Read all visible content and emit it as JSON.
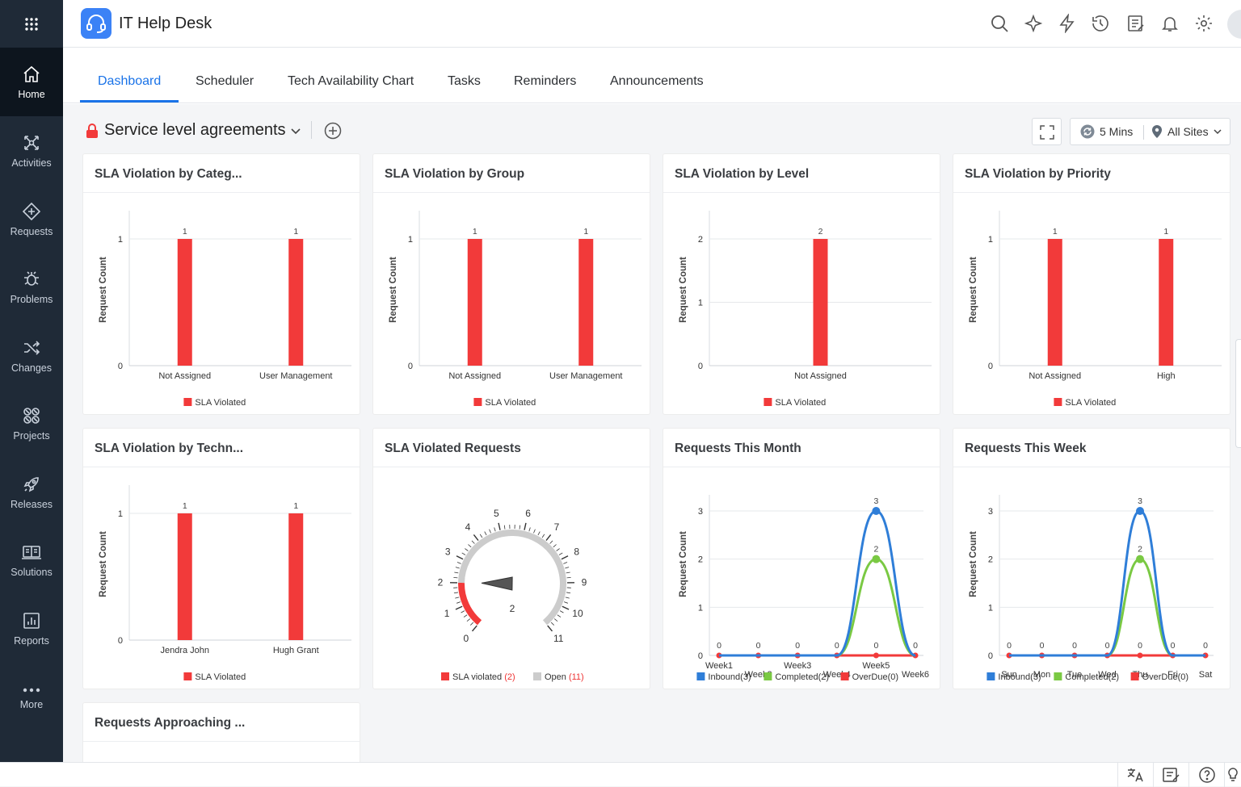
{
  "app": {
    "title": "IT Help Desk"
  },
  "sidebar": {
    "items": [
      {
        "label": "Home",
        "icon": "home-icon"
      },
      {
        "label": "Activities",
        "icon": "activities-icon"
      },
      {
        "label": "Requests",
        "icon": "requests-icon"
      },
      {
        "label": "Problems",
        "icon": "problems-icon"
      },
      {
        "label": "Changes",
        "icon": "changes-icon"
      },
      {
        "label": "Projects",
        "icon": "projects-icon"
      },
      {
        "label": "Releases",
        "icon": "releases-icon"
      },
      {
        "label": "Solutions",
        "icon": "solutions-icon"
      },
      {
        "label": "Reports",
        "icon": "reports-icon"
      },
      {
        "label": "More",
        "icon": "more-icon"
      }
    ]
  },
  "tabs": [
    {
      "label": "Dashboard"
    },
    {
      "label": "Scheduler"
    },
    {
      "label": "Tech Availability Chart"
    },
    {
      "label": "Tasks"
    },
    {
      "label": "Reminders"
    },
    {
      "label": "Announcements"
    }
  ],
  "dashboard": {
    "name": "Service level agreements",
    "refresh": "5 Mins",
    "sites": "All Sites"
  },
  "colors": {
    "accent": "#1a73e8",
    "violated": "#f23a3a",
    "open": "#cccccc",
    "inbound": "#2f7ed8",
    "completed": "#7ac943",
    "overdue": "#f23a3a",
    "sidebar": "#1f2a37"
  },
  "cards": [
    {
      "title": "SLA Violation by Categ..."
    },
    {
      "title": "SLA Violation by Group"
    },
    {
      "title": "SLA Violation by Level"
    },
    {
      "title": "SLA Violation by Priority"
    },
    {
      "title": "SLA Violation by Techn..."
    },
    {
      "title": "SLA Violated Requests"
    },
    {
      "title": "Requests This Month"
    },
    {
      "title": "Requests This Week"
    },
    {
      "title": "Requests Approaching ..."
    }
  ],
  "chart_data": [
    {
      "type": "bar",
      "title": "SLA Violation by Categ...",
      "ylabel": "Request Count",
      "ylim": [
        0,
        1
      ],
      "yticks": [
        "0",
        "1"
      ],
      "categories": [
        "Not Assigned",
        "User Management"
      ],
      "series": [
        {
          "name": "SLA Violated",
          "values": [
            1,
            1
          ]
        }
      ],
      "legend": "bottom"
    },
    {
      "type": "bar",
      "title": "SLA Violation by Group",
      "ylabel": "Request Count",
      "ylim": [
        0,
        1
      ],
      "yticks": [
        "0",
        "1"
      ],
      "categories": [
        "Not Assigned",
        "User Management"
      ],
      "series": [
        {
          "name": "SLA Violated",
          "values": [
            1,
            1
          ]
        }
      ],
      "legend": "bottom"
    },
    {
      "type": "bar",
      "title": "SLA Violation by Level",
      "ylabel": "Request Count",
      "ylim": [
        0,
        2
      ],
      "yticks": [
        "0",
        "1",
        "2"
      ],
      "categories": [
        "Not Assigned"
      ],
      "series": [
        {
          "name": "SLA Violated",
          "values": [
            2
          ]
        }
      ],
      "legend": "bottom"
    },
    {
      "type": "bar",
      "title": "SLA Violation by Priority",
      "ylabel": "Request Count",
      "ylim": [
        0,
        1
      ],
      "yticks": [
        "0",
        "1"
      ],
      "categories": [
        "Not Assigned",
        "High"
      ],
      "series": [
        {
          "name": "SLA Violated",
          "values": [
            1,
            1
          ]
        }
      ],
      "legend": "bottom"
    },
    {
      "type": "bar",
      "title": "SLA Violation by Techn...",
      "ylabel": "Request Count",
      "ylim": [
        0,
        1
      ],
      "yticks": [
        "0",
        "1"
      ],
      "categories": [
        "Jendra John",
        "Hugh Grant"
      ],
      "series": [
        {
          "name": "SLA Violated",
          "values": [
            1,
            1
          ]
        }
      ],
      "legend": "bottom"
    },
    {
      "type": "gauge",
      "title": "SLA Violated Requests",
      "min": 0,
      "max": 11,
      "ticks": [
        "0",
        "1",
        "2",
        "3",
        "4",
        "5",
        "6",
        "7",
        "8",
        "9",
        "10",
        "11"
      ],
      "value": 2,
      "value_label": "2",
      "bands": [
        {
          "from": 0,
          "to": 2,
          "color": "#f23a3a"
        },
        {
          "from": 2,
          "to": 11,
          "color": "#cccccc"
        }
      ],
      "legend": [
        {
          "name": "SLA violated",
          "count": "(2)"
        },
        {
          "name": "Open",
          "count": "(11)"
        }
      ]
    },
    {
      "type": "line",
      "title": "Requests This Month",
      "ylabel": "Request Count",
      "ylim": [
        0,
        3
      ],
      "yticks": [
        "0",
        "1",
        "2",
        "3"
      ],
      "categories": [
        "Week1",
        "Week2",
        "Week3",
        "Week4",
        "Week5",
        "Week6"
      ],
      "series": [
        {
          "name": "Inbound(3)",
          "values": [
            0,
            0,
            0,
            0,
            3,
            0
          ]
        },
        {
          "name": "Completed(2)",
          "values": [
            0,
            0,
            0,
            0,
            2,
            0
          ]
        },
        {
          "name": "OverDue(0)",
          "values": [
            0,
            0,
            0,
            0,
            0,
            0
          ]
        }
      ],
      "legend": "bottom"
    },
    {
      "type": "line",
      "title": "Requests This Week",
      "ylabel": "Request Count",
      "ylim": [
        0,
        3
      ],
      "yticks": [
        "0",
        "1",
        "2",
        "3"
      ],
      "categories": [
        "Sun",
        "Mon",
        "Tue",
        "Wed",
        "Thu",
        "Fri",
        "Sat"
      ],
      "series": [
        {
          "name": "Inbound(3)",
          "values": [
            0,
            0,
            0,
            0,
            3,
            0,
            0
          ]
        },
        {
          "name": "Completed(2)",
          "values": [
            0,
            0,
            0,
            0,
            2,
            0,
            0
          ]
        },
        {
          "name": "OverDue(0)",
          "values": [
            0,
            0,
            0,
            0,
            0,
            0,
            0
          ]
        }
      ],
      "legend": "bottom"
    }
  ]
}
